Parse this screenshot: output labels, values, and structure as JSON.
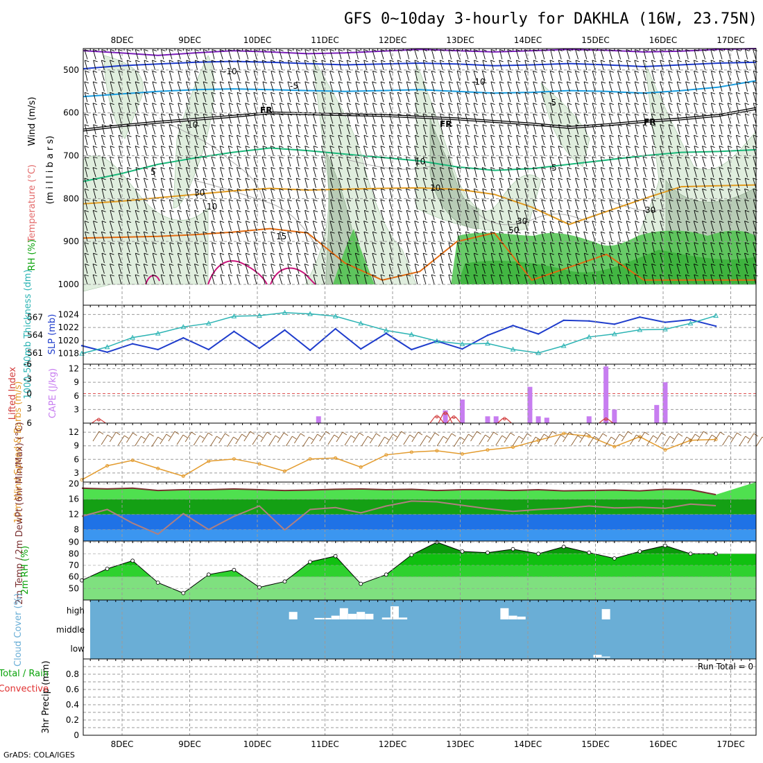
{
  "title": "GFS 0~10day 3-hourly for DAKHLA (16W, 23.75N)",
  "credit": "GrADS: COLA/IGES",
  "run_total_label": "Run Total = 0",
  "dates": [
    "8DEC",
    "9DEC",
    "10DEC",
    "11DEC",
    "12DEC",
    "13DEC",
    "14DEC",
    "15DEC",
    "16DEC",
    "17DEC"
  ],
  "colors": {
    "grid": "#9a9a9a",
    "slp": "#1e3ccc",
    "thickness": "#2ab3b3",
    "cape": "#c77df0",
    "lifted": "#d23c3c",
    "wind_speed": "#e39b2d",
    "barb": "#8a5a2a",
    "temp": "#7a3030",
    "rh_dark": "#0aa30a",
    "rh_mid": "#12d212",
    "rh_light": "#52e052",
    "cloud_bg": "#6aaed6",
    "cloud_block": "#ffffff"
  },
  "chart_data": [
    {
      "id": "upper_air",
      "type": "heatmap",
      "title": "Upper-air cross-section",
      "ylabel_parts": [
        "RH (%)",
        "Temperature (°C)",
        "Wind (m/s)"
      ],
      "ylabel_units": "(m i l l i b a r s)",
      "yticks": [
        500,
        600,
        700,
        800,
        900,
        1000
      ],
      "ylim": [
        1000,
        450
      ],
      "contour_labels": [
        "-10",
        "-10",
        "-5",
        "-5",
        "FR",
        "FR",
        "FR",
        "5",
        "5",
        "10",
        "10",
        "15",
        "10",
        "10",
        "30",
        "30",
        "30",
        "50"
      ],
      "isotherms": [
        {
          "name": "-15",
          "color": "#7a1fb8",
          "p": [
            455,
            460,
            466,
            460,
            455,
            458,
            462,
            460,
            456,
            452,
            455,
            458,
            455,
            452,
            454,
            458,
            456,
            452,
            450
          ]
        },
        {
          "name": "-10",
          "color": "#1e3ccc",
          "p": [
            497,
            490,
            486,
            482,
            480,
            482,
            485,
            488,
            486,
            484,
            486,
            490,
            488,
            485,
            488,
            492,
            488,
            484,
            482
          ]
        },
        {
          "name": "-5",
          "color": "#1a9de0",
          "p": [
            562,
            556,
            550,
            546,
            544,
            546,
            548,
            550,
            548,
            546,
            550,
            554,
            552,
            548,
            550,
            554,
            548,
            540,
            525
          ]
        },
        {
          "name": "FR",
          "color": "#000000",
          "p": [
            640,
            630,
            622,
            615,
            608,
            600,
            602,
            604,
            606,
            610,
            614,
            620,
            626,
            634,
            628,
            620,
            614,
            606,
            590
          ]
        },
        {
          "name": "5",
          "color": "#1ab87a",
          "p": [
            760,
            742,
            720,
            705,
            692,
            682,
            688,
            696,
            704,
            712,
            726,
            734,
            730,
            720,
            710,
            700,
            692,
            690,
            686
          ]
        },
        {
          "name": "10",
          "color": "#e09a20",
          "p": [
            812,
            806,
            798,
            790,
            782,
            776,
            780,
            778,
            776,
            775,
            778,
            790,
            820,
            860,
            830,
            800,
            772,
            770,
            768
          ]
        },
        {
          "name": "15",
          "color": "#e06a10",
          "p": [
            892,
            890,
            888,
            884,
            878,
            870,
            880,
            950,
            990,
            970,
            900,
            880,
            990,
            960,
            930,
            990,
            990,
            990,
            990
          ]
        }
      ]
    },
    {
      "id": "slp_thickness",
      "type": "line",
      "title": "SLP and 1000-500mb thickness",
      "ylabel_left": "1000-500mb Thickness (dm)",
      "ylabel_right": "SLP (mb)",
      "yticks_left": [
        561,
        564,
        567
      ],
      "yticks_right": [
        1018,
        1020,
        1022,
        1024
      ],
      "ylim_slp": [
        1017,
        1025
      ],
      "x_hours": [
        0,
        9,
        18,
        27,
        36,
        45,
        54,
        63,
        72,
        81,
        90,
        99,
        108,
        117,
        126,
        135,
        144,
        153,
        162,
        171,
        180,
        189,
        198,
        207,
        216,
        225
      ],
      "series": [
        {
          "name": "SLP (mb)",
          "values": [
            1019.2,
            1018.2,
            1019.5,
            1018.6,
            1020.4,
            1018.6,
            1021.4,
            1018.8,
            1021.6,
            1018.5,
            1021.8,
            1018.7,
            1021.1,
            1018.6,
            1019.9,
            1018.7,
            1020.8,
            1022.3,
            1021.0,
            1023.1,
            1023.0,
            1022.5,
            1023.6,
            1022.8,
            1023.2,
            1022.2
          ]
        },
        {
          "name": "Thickness (dm)",
          "values": [
            560.9,
            562.0,
            563.6,
            564.3,
            565.4,
            566.0,
            567.2,
            567.3,
            567.8,
            567.6,
            567.2,
            566.0,
            564.8,
            564.1,
            563.0,
            562.5,
            562.6,
            561.6,
            561.0,
            562.2,
            563.7,
            564.2,
            564.9,
            565.0,
            566.0,
            567.3
          ]
        }
      ]
    },
    {
      "id": "cape_li",
      "type": "bar",
      "title": "CAPE and Lifted Index",
      "ylabel_left": "Lifted Index",
      "ylabel_right": "CAPE (J/kg)",
      "yticks_left": [
        -6,
        -3,
        0,
        3,
        6
      ],
      "yticks_right": [
        3,
        6,
        9,
        12
      ],
      "ylim_cape": [
        0,
        13
      ],
      "cape_bars": [
        {
          "hour": 84,
          "value": 1.5
        },
        {
          "hour": 129,
          "value": 2.8
        },
        {
          "hour": 135,
          "value": 5.2
        },
        {
          "hour": 144,
          "value": 1.5
        },
        {
          "hour": 147,
          "value": 1.5
        },
        {
          "hour": 159,
          "value": 8.0
        },
        {
          "hour": 162,
          "value": 1.5
        },
        {
          "hour": 165,
          "value": 1.2
        },
        {
          "hour": 180,
          "value": 1.5
        },
        {
          "hour": 186,
          "value": 12.5
        },
        {
          "hour": 189,
          "value": 3.0
        },
        {
          "hour": 204,
          "value": 4.0
        },
        {
          "hour": 207,
          "value": 9.0
        }
      ],
      "li_points": [
        {
          "hour": 6,
          "value": 5.3
        },
        {
          "hour": 126,
          "value": 4.7
        },
        {
          "hour": 129,
          "value": 4.0
        },
        {
          "hour": 132,
          "value": 4.8
        },
        {
          "hour": 150,
          "value": 5.1
        },
        {
          "hour": 186,
          "value": 5.2
        }
      ]
    },
    {
      "id": "wind10m",
      "type": "line",
      "title": "10m Wind Speed & Barbs",
      "ylabel": "10m Wind Speed & Barbs (m/s)",
      "yticks": [
        3,
        6,
        9,
        12
      ],
      "ylim": [
        1,
        14
      ],
      "x_hours": [
        0,
        9,
        18,
        27,
        36,
        45,
        54,
        63,
        72,
        81,
        90,
        99,
        108,
        117,
        126,
        135,
        144,
        153,
        162,
        171,
        180,
        189,
        198,
        207,
        216,
        225
      ],
      "series": [
        {
          "name": "10m Wind Speed",
          "values": [
            1.5,
            4.6,
            5.8,
            4.0,
            2.3,
            5.6,
            6.1,
            5.0,
            3.4,
            6.1,
            6.3,
            4.3,
            7.0,
            7.6,
            7.9,
            7.2,
            8.1,
            8.7,
            10.2,
            11.7,
            11.1,
            8.8,
            11.0,
            8.1,
            10.2,
            10.4
          ]
        }
      ]
    },
    {
      "id": "temp2m",
      "type": "area",
      "title": "2m Temp, 2m DewPt (6hr Min/Max)",
      "ylabel": "2m Temp / 2m DewPt (6hr Min/Max) (°C)",
      "yticks": [
        8,
        12,
        16,
        20
      ],
      "ylim": [
        5,
        20.5
      ],
      "x_hours": [
        0,
        9,
        18,
        27,
        36,
        45,
        54,
        63,
        72,
        81,
        90,
        99,
        108,
        117,
        126,
        135,
        144,
        153,
        162,
        171,
        180,
        189,
        198,
        207,
        216,
        225
      ],
      "series": [
        {
          "name": "2m Temp",
          "values": [
            18.9,
            18.7,
            18.9,
            18.3,
            18.5,
            18.5,
            18.7,
            18.5,
            18.3,
            18.4,
            18.6,
            18.7,
            18.5,
            18.6,
            18.3,
            18.5,
            18.5,
            18.3,
            18.5,
            18.2,
            18.3,
            18.4,
            18.2,
            18.6,
            18.5,
            17.2
          ]
        },
        {
          "name": "2m DewPt",
          "values": [
            11.5,
            13.3,
            9.7,
            6.8,
            12.2,
            8.0,
            11.5,
            14.2,
            7.9,
            13.3,
            13.8,
            12.4,
            14.2,
            15.5,
            15.3,
            14.4,
            13.5,
            12.8,
            13.3,
            13.6,
            14.2,
            13.7,
            13.9,
            13.6,
            14.7,
            14.3
          ]
        }
      ]
    },
    {
      "id": "rh2m",
      "type": "area",
      "title": "2m RH",
      "ylabel": "2m RH (%)",
      "yticks": [
        50,
        60,
        70,
        80,
        90
      ],
      "ylim": [
        40,
        91
      ],
      "x_hours": [
        0,
        9,
        18,
        27,
        36,
        45,
        54,
        63,
        72,
        81,
        90,
        99,
        108,
        117,
        126,
        135,
        144,
        153,
        162,
        171,
        180,
        189,
        198,
        207,
        216,
        225
      ],
      "series": [
        {
          "name": "2m RH",
          "values": [
            57,
            67,
            74,
            55,
            46,
            62,
            66,
            51,
            56,
            73,
            78,
            54,
            62,
            79,
            90,
            82,
            81,
            84,
            80,
            86,
            81,
            76,
            82,
            87,
            80,
            80
          ]
        }
      ]
    },
    {
      "id": "cloud",
      "type": "bar",
      "title": "Cloud Cover",
      "ylabel": "Cloud Cover (%)",
      "levels": [
        "high",
        "middle",
        "low"
      ],
      "blocks": [
        {
          "level": "high",
          "hour": 75,
          "value": 40
        },
        {
          "level": "high",
          "hour": 84,
          "value": 8
        },
        {
          "level": "high",
          "hour": 87,
          "value": 8
        },
        {
          "level": "high",
          "hour": 90,
          "value": 20
        },
        {
          "level": "high",
          "hour": 93,
          "value": 60
        },
        {
          "level": "high",
          "hour": 96,
          "value": 30
        },
        {
          "level": "high",
          "hour": 99,
          "value": 40
        },
        {
          "level": "high",
          "hour": 102,
          "value": 30
        },
        {
          "level": "high",
          "hour": 108,
          "value": 10
        },
        {
          "level": "high",
          "hour": 111,
          "value": 70
        },
        {
          "level": "high",
          "hour": 114,
          "value": 10
        },
        {
          "level": "high",
          "hour": 150,
          "value": 60
        },
        {
          "level": "high",
          "hour": 153,
          "value": 20
        },
        {
          "level": "high",
          "hour": 156,
          "value": 15
        },
        {
          "level": "high",
          "hour": 186,
          "value": 55
        },
        {
          "level": "low",
          "hour": 183,
          "value": 15
        },
        {
          "level": "low",
          "hour": 186,
          "value": 5
        }
      ]
    },
    {
      "id": "precip",
      "type": "bar",
      "title": "3hr Precip",
      "ylabel": "3hr Precip (mm)",
      "left_labels": [
        "Total / Rain",
        "Convective"
      ],
      "yticks": [
        0,
        0.2,
        0.4,
        0.6,
        0.8
      ],
      "ylim": [
        0,
        1
      ],
      "values": []
    }
  ]
}
